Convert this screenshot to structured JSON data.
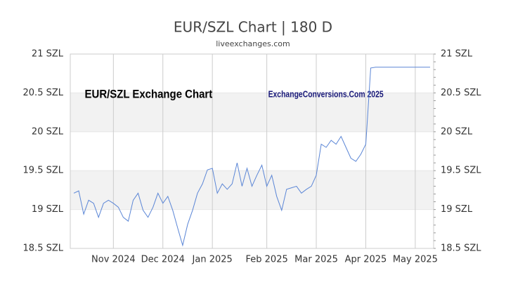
{
  "chart_data": {
    "type": "line",
    "title": "EUR/SZL Chart | 180 D",
    "subtitle": "liveexchanges.com",
    "annotations": [
      "EUR/SZL Exchange Chart",
      "ExchangeConversions.Com 2025"
    ],
    "categories": [
      null,
      null,
      null,
      null,
      null,
      null,
      null,
      null,
      "Nov 2024",
      null,
      null,
      null,
      null,
      null,
      null,
      null,
      null,
      null,
      "Dec 2024",
      null,
      null,
      null,
      null,
      null,
      null,
      null,
      null,
      null,
      "Jan 2025",
      null,
      null,
      null,
      null,
      null,
      null,
      null,
      null,
      null,
      null,
      "Feb 2025",
      null,
      null,
      null,
      null,
      null,
      null,
      null,
      null,
      null,
      "Mar 2025",
      null,
      null,
      null,
      null,
      null,
      null,
      null,
      null,
      null,
      "Apr 2025",
      null,
      null,
      null,
      null,
      null,
      null,
      null,
      null,
      null,
      "May 2025",
      null,
      null,
      null
    ],
    "series": [
      {
        "name": "EUR/SZL",
        "color": "#5b86d6",
        "values": [
          19.21,
          19.24,
          18.94,
          19.12,
          19.08,
          18.9,
          19.08,
          19.12,
          19.08,
          19.03,
          18.9,
          18.85,
          19.12,
          19.21,
          18.99,
          18.9,
          19.03,
          19.21,
          19.08,
          19.17,
          18.99,
          18.76,
          18.54,
          18.81,
          18.99,
          19.21,
          19.33,
          19.51,
          19.53,
          19.21,
          19.33,
          19.26,
          19.33,
          19.6,
          19.3,
          19.53,
          19.3,
          19.44,
          19.57,
          19.3,
          19.44,
          19.17,
          18.99,
          19.26,
          19.28,
          19.3,
          19.21,
          19.26,
          19.3,
          19.44,
          19.84,
          19.8,
          19.89,
          19.84,
          19.94,
          19.8,
          19.66,
          19.62,
          19.71,
          19.84,
          20.82,
          20.83,
          20.83,
          20.83,
          20.83,
          20.83,
          20.83,
          20.83,
          20.83,
          20.83,
          20.83,
          20.83,
          20.83
        ]
      }
    ],
    "ylim": [
      18.5,
      21
    ],
    "yticks": [
      {
        "value": 18.5,
        "label": "18.5 SZL"
      },
      {
        "value": 19,
        "label": "19 SZL"
      },
      {
        "value": 19.5,
        "label": "19.5 SZL"
      },
      {
        "value": 20,
        "label": "20 SZL"
      },
      {
        "value": 20.5,
        "label": "20.5 SZL"
      },
      {
        "value": 21,
        "label": "21 SZL"
      }
    ],
    "grid": true
  }
}
